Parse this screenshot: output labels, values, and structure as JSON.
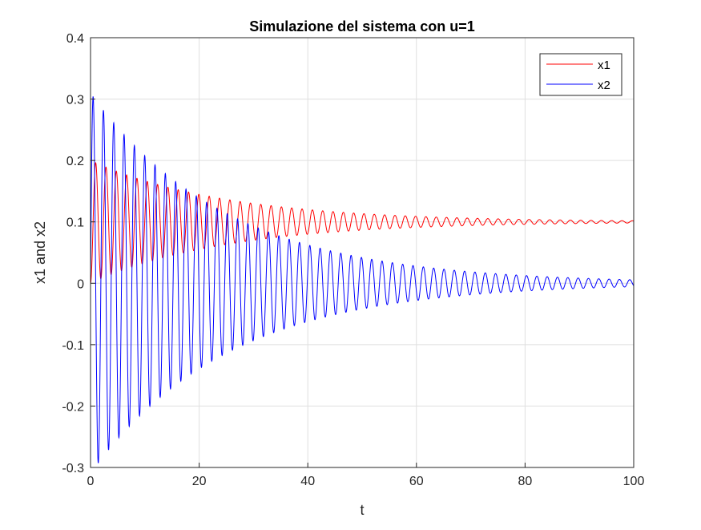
{
  "chart_data": {
    "type": "line",
    "title": "Simulazione del sistema con u=1",
    "xlabel": "t",
    "ylabel": "x1 and x2",
    "xlim": [
      0,
      100
    ],
    "ylim": [
      -0.3,
      0.4
    ],
    "xticks": [
      0,
      20,
      40,
      60,
      80,
      100
    ],
    "xtick_labels": [
      "0",
      "20",
      "40",
      "60",
      "80",
      "100"
    ],
    "yticks": [
      -0.3,
      -0.2,
      -0.1,
      0,
      0.1,
      0.2,
      0.3,
      0.4
    ],
    "ytick_labels": [
      "-0.3",
      "-0.2",
      "-0.1",
      "0",
      "0.1",
      "0.2",
      "0.3",
      "0.4"
    ],
    "grid": true,
    "legend_position": "top-right",
    "series": [
      {
        "name": "x1",
        "color": "#ff0000",
        "description_of_shape": "damped oscillation around 0.1",
        "steady_state": 0.1,
        "initial_amplitude": 0.1,
        "period": 1.9,
        "decay_time_constant": 25,
        "start_value": 0
      },
      {
        "name": "x2",
        "color": "#0000ff",
        "steady_state": 0,
        "initial_amplitude": 0.31,
        "period": 1.9,
        "decay_time_constant": 25,
        "start_value": 0
      }
    ]
  }
}
